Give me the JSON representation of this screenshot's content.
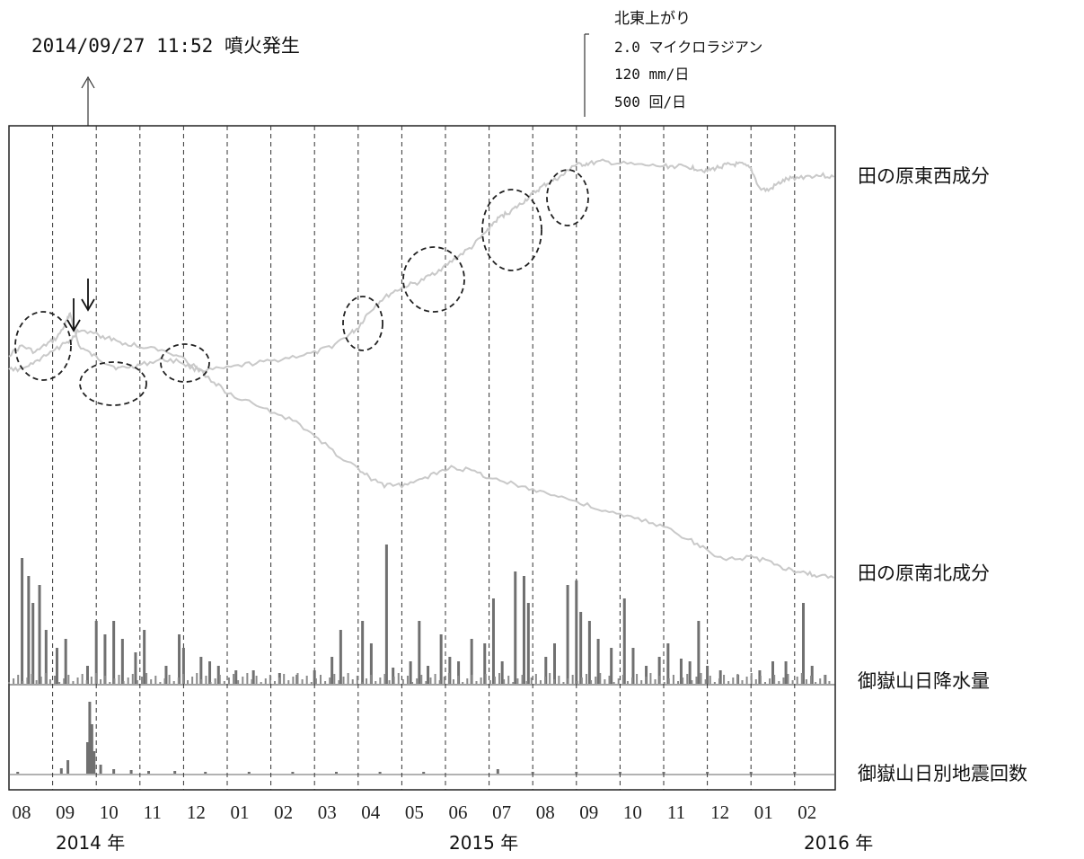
{
  "annotations": {
    "eruption": "2014/09/27 11:52 噴火発生",
    "scale_lines": [
      "北東上がり",
      "2.0 マイクロラジアン",
      "120 mm/日",
      "500 回/日"
    ]
  },
  "colors": {
    "tilt_line": "#c9c9c9",
    "bars": "#707070",
    "frame": "#222222"
  },
  "chart_data": {
    "type": "line",
    "x_labels": [
      "08",
      "09",
      "10",
      "11",
      "12",
      "01",
      "02",
      "03",
      "04",
      "05",
      "06",
      "07",
      "08",
      "09",
      "10",
      "11",
      "12",
      "01",
      "02"
    ],
    "year_labels": [
      "2014 年",
      "2015 年",
      "2016 年"
    ],
    "series_labels": {
      "ew": "田の原東西成分",
      "ns": "田の原南北成分",
      "rain": "御嶽山日降水量",
      "quake": "御嶽山日別地震回数"
    },
    "ew_points": [
      [
        0,
        395
      ],
      [
        0.3,
        385
      ],
      [
        0.6,
        392
      ],
      [
        0.9,
        382
      ],
      [
        1.1,
        376
      ],
      [
        1.3,
        360
      ],
      [
        1.4,
        348
      ],
      [
        1.6,
        385
      ],
      [
        1.9,
        395
      ],
      [
        2.2,
        403
      ],
      [
        2.5,
        410
      ],
      [
        2.8,
        408
      ],
      [
        3.1,
        405
      ],
      [
        3.5,
        400
      ],
      [
        3.9,
        402
      ],
      [
        4.2,
        410
      ],
      [
        4.5,
        412
      ],
      [
        5.0,
        410
      ],
      [
        5.5,
        405
      ],
      [
        6.0,
        402
      ],
      [
        6.5,
        397
      ],
      [
        7.0,
        393
      ],
      [
        7.4,
        385
      ],
      [
        7.8,
        372
      ],
      [
        8.0,
        365
      ],
      [
        8.2,
        350
      ],
      [
        8.5,
        335
      ],
      [
        8.8,
        325
      ],
      [
        9.1,
        318
      ],
      [
        9.4,
        314
      ],
      [
        9.7,
        305
      ],
      [
        10.0,
        296
      ],
      [
        10.3,
        285
      ],
      [
        10.6,
        275
      ],
      [
        10.9,
        260
      ],
      [
        11.1,
        248
      ],
      [
        11.3,
        240
      ],
      [
        11.5,
        235
      ],
      [
        11.7,
        228
      ],
      [
        11.9,
        220
      ],
      [
        12.1,
        212
      ],
      [
        12.3,
        205
      ],
      [
        12.5,
        200
      ],
      [
        12.7,
        195
      ],
      [
        12.9,
        185
      ],
      [
        13.1,
        183
      ],
      [
        13.3,
        182
      ],
      [
        13.6,
        180
      ],
      [
        14.0,
        182
      ],
      [
        14.5,
        184
      ],
      [
        15.0,
        185
      ],
      [
        15.3,
        185
      ],
      [
        15.6,
        186
      ],
      [
        15.8,
        188
      ],
      [
        16.0,
        190
      ],
      [
        16.2,
        187
      ],
      [
        16.4,
        184
      ],
      [
        16.6,
        183
      ],
      [
        16.8,
        183
      ],
      [
        17.0,
        188
      ],
      [
        17.2,
        210
      ],
      [
        17.4,
        212
      ],
      [
        17.6,
        205
      ],
      [
        17.8,
        200
      ],
      [
        18.0,
        198
      ],
      [
        18.3,
        196
      ],
      [
        18.6,
        195
      ],
      [
        18.9,
        197
      ]
    ],
    "ns_points": [
      [
        0,
        412
      ],
      [
        0.3,
        410
      ],
      [
        0.6,
        404
      ],
      [
        0.9,
        394
      ],
      [
        1.2,
        385
      ],
      [
        1.4,
        378
      ],
      [
        1.6,
        368
      ],
      [
        2.0,
        372
      ],
      [
        2.3,
        377
      ],
      [
        2.6,
        382
      ],
      [
        3.0,
        385
      ],
      [
        3.5,
        390
      ],
      [
        3.9,
        395
      ],
      [
        4.3,
        410
      ],
      [
        4.7,
        425
      ],
      [
        5.0,
        437
      ],
      [
        5.5,
        448
      ],
      [
        6.0,
        458
      ],
      [
        6.5,
        468
      ],
      [
        7.0,
        485
      ],
      [
        7.5,
        505
      ],
      [
        8.0,
        522
      ],
      [
        8.3,
        533
      ],
      [
        8.6,
        540
      ],
      [
        9.0,
        540
      ],
      [
        9.4,
        535
      ],
      [
        9.8,
        526
      ],
      [
        10.2,
        520
      ],
      [
        10.6,
        524
      ],
      [
        11.0,
        531
      ],
      [
        11.5,
        538
      ],
      [
        12.0,
        544
      ],
      [
        12.5,
        551
      ],
      [
        13.0,
        558
      ],
      [
        13.5,
        567
      ],
      [
        14.0,
        573
      ],
      [
        14.5,
        579
      ],
      [
        15.0,
        586
      ],
      [
        15.5,
        598
      ],
      [
        15.9,
        610
      ],
      [
        16.3,
        620
      ],
      [
        16.7,
        623
      ],
      [
        17.0,
        620
      ],
      [
        17.4,
        625
      ],
      [
        17.8,
        633
      ],
      [
        18.2,
        637
      ],
      [
        18.5,
        640
      ],
      [
        18.9,
        643
      ]
    ],
    "rain_spikes": [
      [
        0.3,
        140
      ],
      [
        0.45,
        120
      ],
      [
        0.55,
        90
      ],
      [
        0.7,
        110
      ],
      [
        0.85,
        60
      ],
      [
        1.1,
        40
      ],
      [
        1.3,
        50
      ],
      [
        1.8,
        20
      ],
      [
        2.0,
        70
      ],
      [
        2.2,
        55
      ],
      [
        2.4,
        70
      ],
      [
        2.6,
        50
      ],
      [
        2.9,
        35
      ],
      [
        3.1,
        60
      ],
      [
        3.6,
        20
      ],
      [
        3.9,
        55
      ],
      [
        4.0,
        40
      ],
      [
        4.4,
        30
      ],
      [
        4.6,
        25
      ],
      [
        4.8,
        20
      ],
      [
        5.2,
        15
      ],
      [
        5.6,
        15
      ],
      [
        6.2,
        12
      ],
      [
        6.6,
        10
      ],
      [
        7.0,
        15
      ],
      [
        7.4,
        30
      ],
      [
        7.6,
        60
      ],
      [
        8.1,
        70
      ],
      [
        8.3,
        45
      ],
      [
        8.65,
        155
      ],
      [
        8.8,
        18
      ],
      [
        9.2,
        25
      ],
      [
        9.4,
        70
      ],
      [
        9.6,
        20
      ],
      [
        9.9,
        55
      ],
      [
        10.1,
        30
      ],
      [
        10.3,
        25
      ],
      [
        10.6,
        50
      ],
      [
        10.9,
        45
      ],
      [
        11.1,
        95
      ],
      [
        11.3,
        25
      ],
      [
        11.6,
        125
      ],
      [
        11.8,
        120
      ],
      [
        11.9,
        90
      ],
      [
        12.3,
        30
      ],
      [
        12.5,
        45
      ],
      [
        12.8,
        110
      ],
      [
        13.0,
        115
      ],
      [
        13.1,
        80
      ],
      [
        13.3,
        70
      ],
      [
        13.5,
        50
      ],
      [
        13.8,
        40
      ],
      [
        14.1,
        95
      ],
      [
        14.3,
        40
      ],
      [
        14.6,
        20
      ],
      [
        14.9,
        30
      ],
      [
        15.1,
        45
      ],
      [
        15.4,
        28
      ],
      [
        15.6,
        25
      ],
      [
        15.8,
        70
      ],
      [
        16.0,
        20
      ],
      [
        16.3,
        15
      ],
      [
        16.7,
        10
      ],
      [
        17.2,
        15
      ],
      [
        17.5,
        25
      ],
      [
        17.8,
        25
      ],
      [
        18.2,
        90
      ],
      [
        18.4,
        20
      ],
      [
        18.7,
        10
      ]
    ],
    "quake_spikes": [
      [
        0.2,
        2
      ],
      [
        1.2,
        6
      ],
      [
        1.35,
        15
      ],
      [
        1.8,
        35
      ],
      [
        1.85,
        80
      ],
      [
        1.9,
        55
      ],
      [
        1.95,
        25
      ],
      [
        2.1,
        10
      ],
      [
        2.4,
        5
      ],
      [
        2.8,
        4
      ],
      [
        3.2,
        3
      ],
      [
        3.8,
        3
      ],
      [
        4.5,
        2
      ],
      [
        5.5,
        2
      ],
      [
        6.5,
        2
      ],
      [
        7.5,
        2
      ],
      [
        8.5,
        2
      ],
      [
        9.5,
        2
      ],
      [
        11.2,
        5
      ],
      [
        12.0,
        2
      ],
      [
        13.0,
        2
      ],
      [
        14.0,
        2
      ],
      [
        15.0,
        2
      ],
      [
        16.0,
        2
      ],
      [
        17.0,
        2
      ],
      [
        18.0,
        2
      ]
    ]
  }
}
